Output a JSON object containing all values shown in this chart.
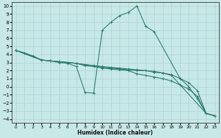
{
  "xlabel": "Humidex (Indice chaleur)",
  "bg_color": "#c8e8e8",
  "grid_color": "#b0d8d8",
  "line_color": "#2a7a6a",
  "xlim": [
    -0.5,
    23.5
  ],
  "ylim": [
    -4.5,
    10.5
  ],
  "xticks": [
    0,
    1,
    2,
    3,
    4,
    5,
    6,
    7,
    8,
    9,
    10,
    11,
    12,
    13,
    14,
    15,
    16,
    17,
    18,
    19,
    20,
    21,
    22,
    23
  ],
  "yticks": [
    -4,
    -3,
    -2,
    -1,
    0,
    1,
    2,
    3,
    4,
    5,
    6,
    7,
    8,
    9,
    10
  ],
  "curves": [
    {
      "x": [
        0,
        1,
        2,
        3,
        4,
        5,
        6,
        7,
        8,
        9,
        10,
        11,
        12,
        13,
        14,
        15,
        16,
        17,
        18,
        19,
        20,
        21,
        22,
        23
      ],
      "y": [
        4.5,
        4.2,
        3.8,
        3.3,
        3.2,
        3.1,
        3.0,
        2.9,
        2.6,
        2.5,
        2.3,
        2.2,
        2.1,
        2.0,
        1.6,
        1.4,
        1.2,
        1.0,
        0.7,
        0.2,
        -0.3,
        -1.2,
        -3.3,
        -3.6
      ]
    },
    {
      "x": [
        0,
        3,
        4,
        5,
        6,
        7,
        8,
        9,
        10,
        11,
        12,
        13,
        14,
        15,
        16,
        17,
        18,
        22,
        23
      ],
      "y": [
        4.5,
        3.3,
        3.2,
        3.1,
        3.0,
        2.9,
        2.7,
        2.6,
        2.4,
        2.3,
        2.2,
        2.1,
        2.0,
        2.0,
        1.8,
        1.7,
        1.4,
        -3.3,
        -3.6
      ]
    },
    {
      "x": [
        0,
        3,
        4,
        5,
        6,
        7,
        8,
        9,
        10,
        11,
        12,
        13,
        14,
        15,
        16,
        19,
        20,
        21,
        22,
        23
      ],
      "y": [
        4.5,
        3.3,
        3.2,
        3.0,
        2.9,
        2.5,
        -0.7,
        -0.8,
        7.0,
        8.0,
        8.8,
        9.2,
        10.0,
        7.5,
        6.8,
        1.0,
        0.0,
        -1.5,
        -3.3,
        -3.6
      ]
    },
    {
      "x": [
        0,
        3,
        4,
        5,
        6,
        10,
        11,
        12,
        13,
        14,
        15,
        16,
        17,
        18,
        19,
        20,
        21,
        22,
        23
      ],
      "y": [
        4.5,
        3.3,
        3.2,
        3.1,
        3.0,
        2.5,
        2.4,
        2.3,
        2.2,
        2.1,
        2.0,
        1.9,
        1.7,
        1.5,
        1.0,
        0.5,
        -0.5,
        -3.3,
        -3.6
      ]
    }
  ]
}
